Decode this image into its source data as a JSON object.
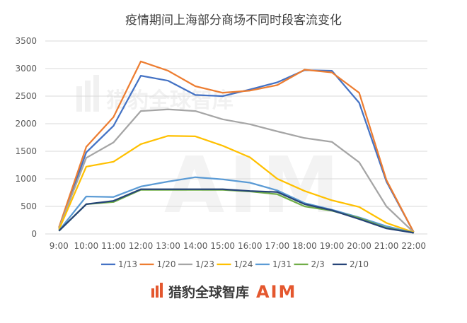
{
  "chart_data": {
    "type": "line",
    "title": "疫情期间上海部分商场不同时段客流变化",
    "categories": [
      "9:00",
      "10:00",
      "11:00",
      "12:00",
      "13:00",
      "14:00",
      "15:00",
      "16:00",
      "17:00",
      "18:00",
      "19:00",
      "20:00",
      "21:00",
      "22:00"
    ],
    "ylim": [
      0,
      3500
    ],
    "yticks": [
      0,
      500,
      1000,
      1500,
      2000,
      2500,
      3000,
      3500
    ],
    "grid": true,
    "legend_position": "bottom",
    "series": [
      {
        "name": "1/13",
        "color": "#4472c4",
        "values": [
          100,
          1480,
          1960,
          2870,
          2780,
          2520,
          2500,
          2620,
          2750,
          2970,
          2960,
          2380,
          950,
          30
        ]
      },
      {
        "name": "1/20",
        "color": "#ed7d31",
        "values": [
          120,
          1580,
          2120,
          3130,
          2960,
          2680,
          2560,
          2600,
          2700,
          2980,
          2930,
          2560,
          980,
          30
        ]
      },
      {
        "name": "1/23",
        "color": "#a5a5a5",
        "values": [
          100,
          1380,
          1660,
          2230,
          2260,
          2230,
          2080,
          1990,
          1860,
          1740,
          1670,
          1300,
          500,
          30
        ]
      },
      {
        "name": "1/24",
        "color": "#ffc000",
        "values": [
          80,
          1220,
          1310,
          1630,
          1780,
          1770,
          1600,
          1390,
          1000,
          780,
          610,
          490,
          200,
          30
        ]
      },
      {
        "name": "1/31",
        "color": "#5b9bd5",
        "values": [
          60,
          680,
          670,
          860,
          950,
          1030,
          990,
          930,
          790,
          560,
          440,
          300,
          140,
          20
        ]
      },
      {
        "name": "2/3",
        "color": "#70ad47",
        "values": [
          55,
          540,
          580,
          800,
          800,
          800,
          800,
          770,
          720,
          500,
          420,
          290,
          110,
          20
        ]
      },
      {
        "name": "2/10",
        "color": "#264478",
        "values": [
          55,
          540,
          600,
          810,
          810,
          810,
          810,
          780,
          760,
          540,
          430,
          270,
          100,
          20
        ]
      }
    ]
  },
  "watermark": {
    "brand_cn": "猎豹全球智库",
    "brand_en": "AIM"
  },
  "logo": {
    "brand_cn": "猎豹全球智库",
    "brand_en": "AIM"
  },
  "colors": {
    "logo_orange": "#e4572e"
  }
}
